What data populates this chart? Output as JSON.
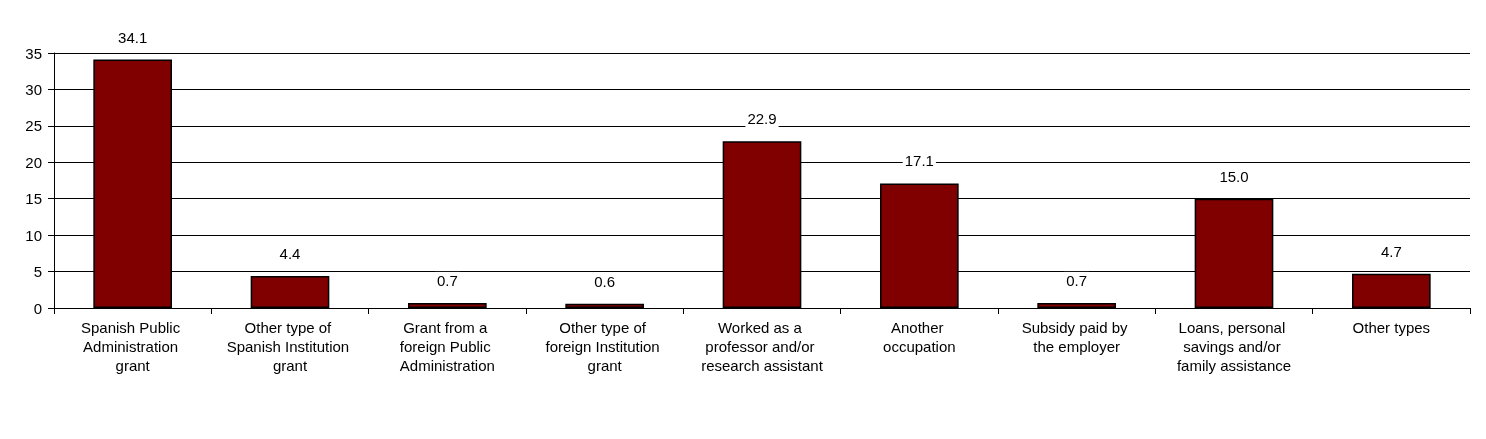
{
  "chart_data": {
    "type": "bar",
    "categories": [
      "Spanish Public Administration grant",
      "Other type of Spanish Institution grant",
      "Grant from a foreign Public Administration",
      "Other type of foreign Institution grant",
      "Worked as a professor and/or research assistant",
      "Another occupation",
      "Subsidy paid by the employer",
      "Loans, personal savings and/or family assistance",
      "Other types"
    ],
    "values": [
      34.1,
      4.4,
      0.7,
      0.6,
      22.9,
      17.1,
      0.7,
      15.0,
      4.7
    ],
    "value_labels": [
      "34.1",
      "4.4",
      "0.7",
      "0.6",
      "22.9",
      "17.1",
      "0.7",
      "15.0",
      "4.7"
    ],
    "color": "#800000",
    "ylim": [
      0,
      35
    ],
    "yticks": [
      0,
      5,
      10,
      15,
      20,
      25,
      30,
      35
    ],
    "grid": "y"
  }
}
